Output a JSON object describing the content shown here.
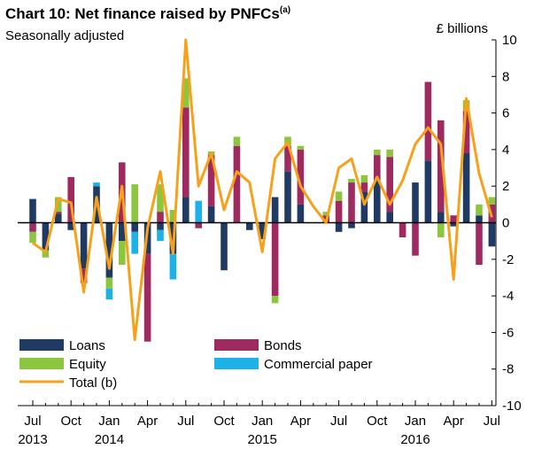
{
  "chart_data": {
    "type": "bar",
    "title": "Chart 10: Net finance raised by PNFCs",
    "title_footnote": "(a)",
    "subtitle": "Seasonally adjusted",
    "unit": "£ billions",
    "stacked": true,
    "ylim": [
      -10,
      10
    ],
    "y_ticks": [
      -10,
      -8,
      -6,
      -4,
      -2,
      0,
      2,
      4,
      6,
      8,
      10
    ],
    "y_axis_position": "right",
    "grid": false,
    "legend_position": "bottom-left",
    "x_tick_labels": [
      {
        "index": 0,
        "month": "Jul",
        "year": "2013"
      },
      {
        "index": 3,
        "month": "Oct",
        "year": ""
      },
      {
        "index": 6,
        "month": "Jan",
        "year": "2014"
      },
      {
        "index": 9,
        "month": "Apr",
        "year": ""
      },
      {
        "index": 12,
        "month": "Jul",
        "year": ""
      },
      {
        "index": 15,
        "month": "Oct",
        "year": ""
      },
      {
        "index": 18,
        "month": "Jan",
        "year": "2015"
      },
      {
        "index": 21,
        "month": "Apr",
        "year": ""
      },
      {
        "index": 24,
        "month": "Jul",
        "year": ""
      },
      {
        "index": 27,
        "month": "Oct",
        "year": ""
      },
      {
        "index": 30,
        "month": "Jan",
        "year": "2016"
      },
      {
        "index": 33,
        "month": "Apr",
        "year": ""
      },
      {
        "index": 36,
        "month": "Jul",
        "year": ""
      }
    ],
    "series": [
      {
        "name": "Loans",
        "kind": "bar",
        "color": "#1f3b64",
        "values": [
          1.3,
          -1.5,
          0.5,
          -0.4,
          -2.5,
          2.0,
          -3.0,
          -1.0,
          -0.5,
          -1.7,
          -0.4,
          -1.7,
          1.4,
          0.0,
          0.9,
          -2.6,
          0.0,
          -0.4,
          -0.9,
          1.4,
          2.8,
          1.0,
          0.0,
          0.0,
          -0.5,
          -0.3,
          1.7,
          2.3,
          0.6,
          0.0,
          2.2,
          3.4,
          0.6,
          -0.2,
          3.8,
          0.4,
          -1.3
        ]
      },
      {
        "name": "Bonds",
        "kind": "bar",
        "color": "#9e2a5f",
        "values": [
          -0.5,
          0.0,
          0.1,
          2.5,
          -0.8,
          0.0,
          0.0,
          3.3,
          0.0,
          -4.8,
          0.6,
          0.0,
          4.9,
          -0.3,
          2.8,
          0.0,
          4.2,
          0.0,
          0.0,
          -4.0,
          1.4,
          3.0,
          0.0,
          0.4,
          1.2,
          2.2,
          0.5,
          1.4,
          3.0,
          -0.8,
          -1.8,
          4.3,
          5.0,
          0.4,
          2.3,
          -2.3,
          1.0
        ]
      },
      {
        "name": "Equity",
        "kind": "bar",
        "color": "#8cc63e",
        "values": [
          -0.6,
          -0.4,
          0.8,
          0.0,
          0.0,
          0.0,
          -0.6,
          -1.3,
          2.1,
          0.0,
          1.5,
          0.7,
          1.6,
          0.0,
          0.2,
          0.0,
          0.5,
          0.0,
          0.0,
          -0.4,
          0.5,
          0.2,
          0.0,
          0.2,
          0.5,
          0.2,
          0.4,
          0.3,
          0.4,
          0.0,
          0.0,
          0.0,
          -0.8,
          0.0,
          0.6,
          0.6,
          0.4
        ]
      },
      {
        "name": "Commercial paper",
        "kind": "bar",
        "color": "#1eb1e8",
        "values": [
          0.0,
          0.0,
          0.0,
          0.0,
          0.0,
          0.2,
          -0.6,
          0.0,
          -1.2,
          0.0,
          -0.6,
          -1.4,
          0.0,
          1.2,
          0.0,
          0.0,
          0.0,
          0.0,
          0.0,
          0.0,
          0.0,
          0.0,
          0.0,
          0.0,
          0.0,
          0.0,
          0.0,
          0.0,
          0.0,
          0.0,
          0.0,
          0.0,
          0.0,
          0.0,
          0.0,
          0.0,
          0.0
        ]
      },
      {
        "name": "Total (b)",
        "kind": "line",
        "color": "#f7a11a",
        "values": [
          -1.1,
          -1.6,
          1.3,
          1.1,
          -3.8,
          1.4,
          -2.5,
          2.0,
          -6.4,
          -0.3,
          2.8,
          -1.7,
          10.0,
          2.0,
          3.8,
          0.7,
          2.8,
          2.2,
          -1.6,
          3.5,
          4.4,
          2.0,
          0.9,
          0.0,
          3.0,
          3.5,
          1.0,
          2.5,
          1.0,
          2.3,
          4.3,
          5.2,
          4.3,
          -3.1,
          6.8,
          2.7,
          0.3
        ]
      }
    ]
  }
}
